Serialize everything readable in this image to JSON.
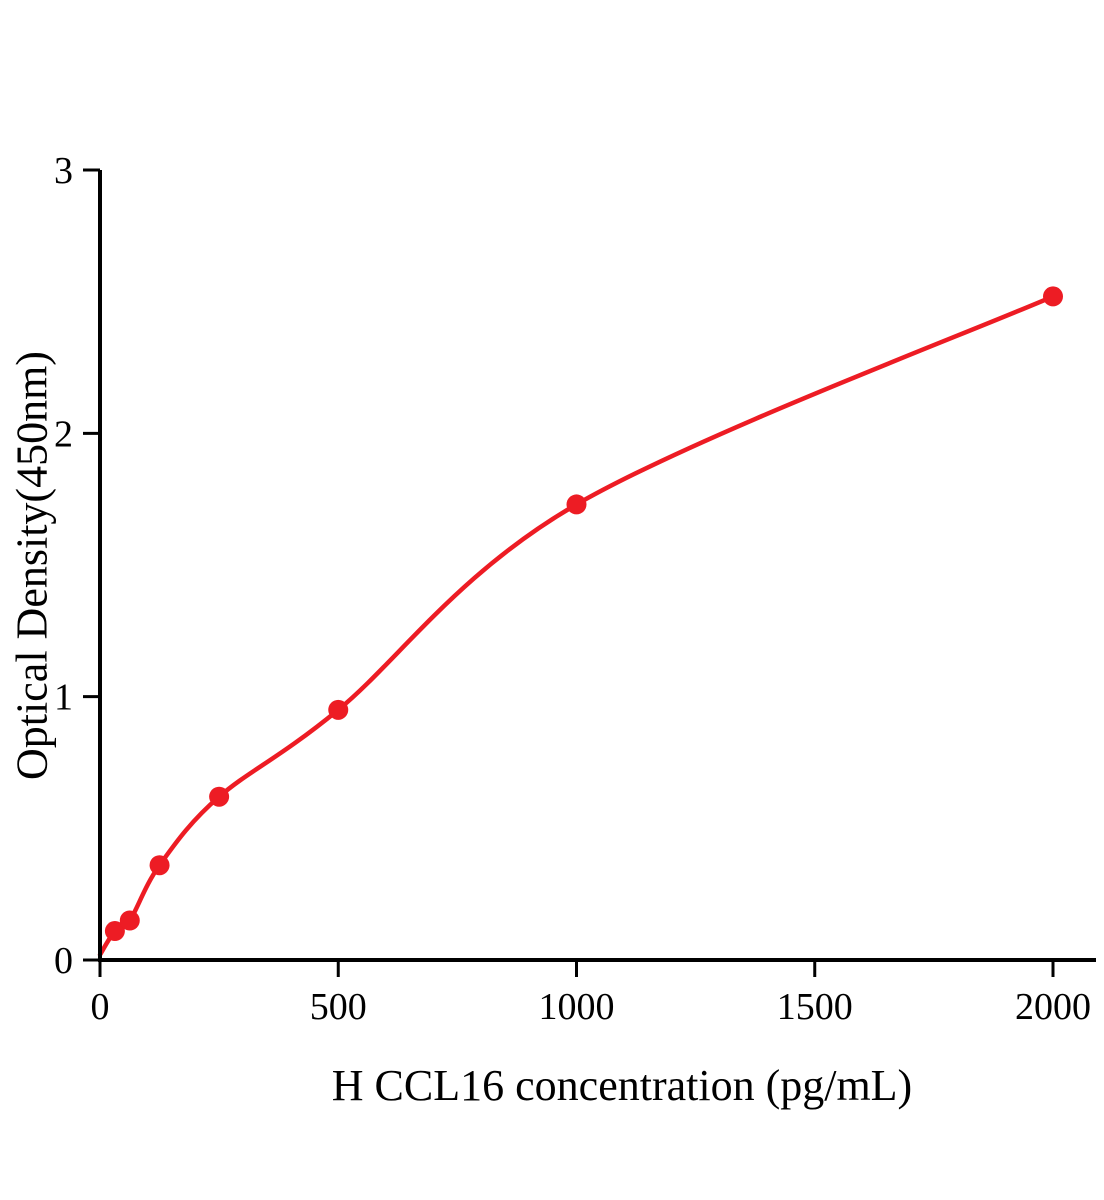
{
  "chart_data": {
    "type": "scatter",
    "title": "",
    "xlabel": "H CCL16 concentration (pg/mL)",
    "ylabel": "Optical Density(450nm)",
    "x": [
      31.25,
      62.5,
      125,
      250,
      500,
      1000,
      2000
    ],
    "y": [
      0.11,
      0.15,
      0.36,
      0.62,
      0.95,
      1.73,
      2.52
    ],
    "curve_start": [
      0,
      0.02
    ],
    "xlim": [
      0,
      2000
    ],
    "ylim": [
      0,
      3
    ],
    "xticks": [
      0,
      500,
      1000,
      1500,
      2000
    ],
    "yticks": [
      0,
      1,
      2,
      3
    ],
    "grid": false,
    "legend": "none",
    "series_color": "#ed1c24",
    "axis_color": "#000000"
  }
}
